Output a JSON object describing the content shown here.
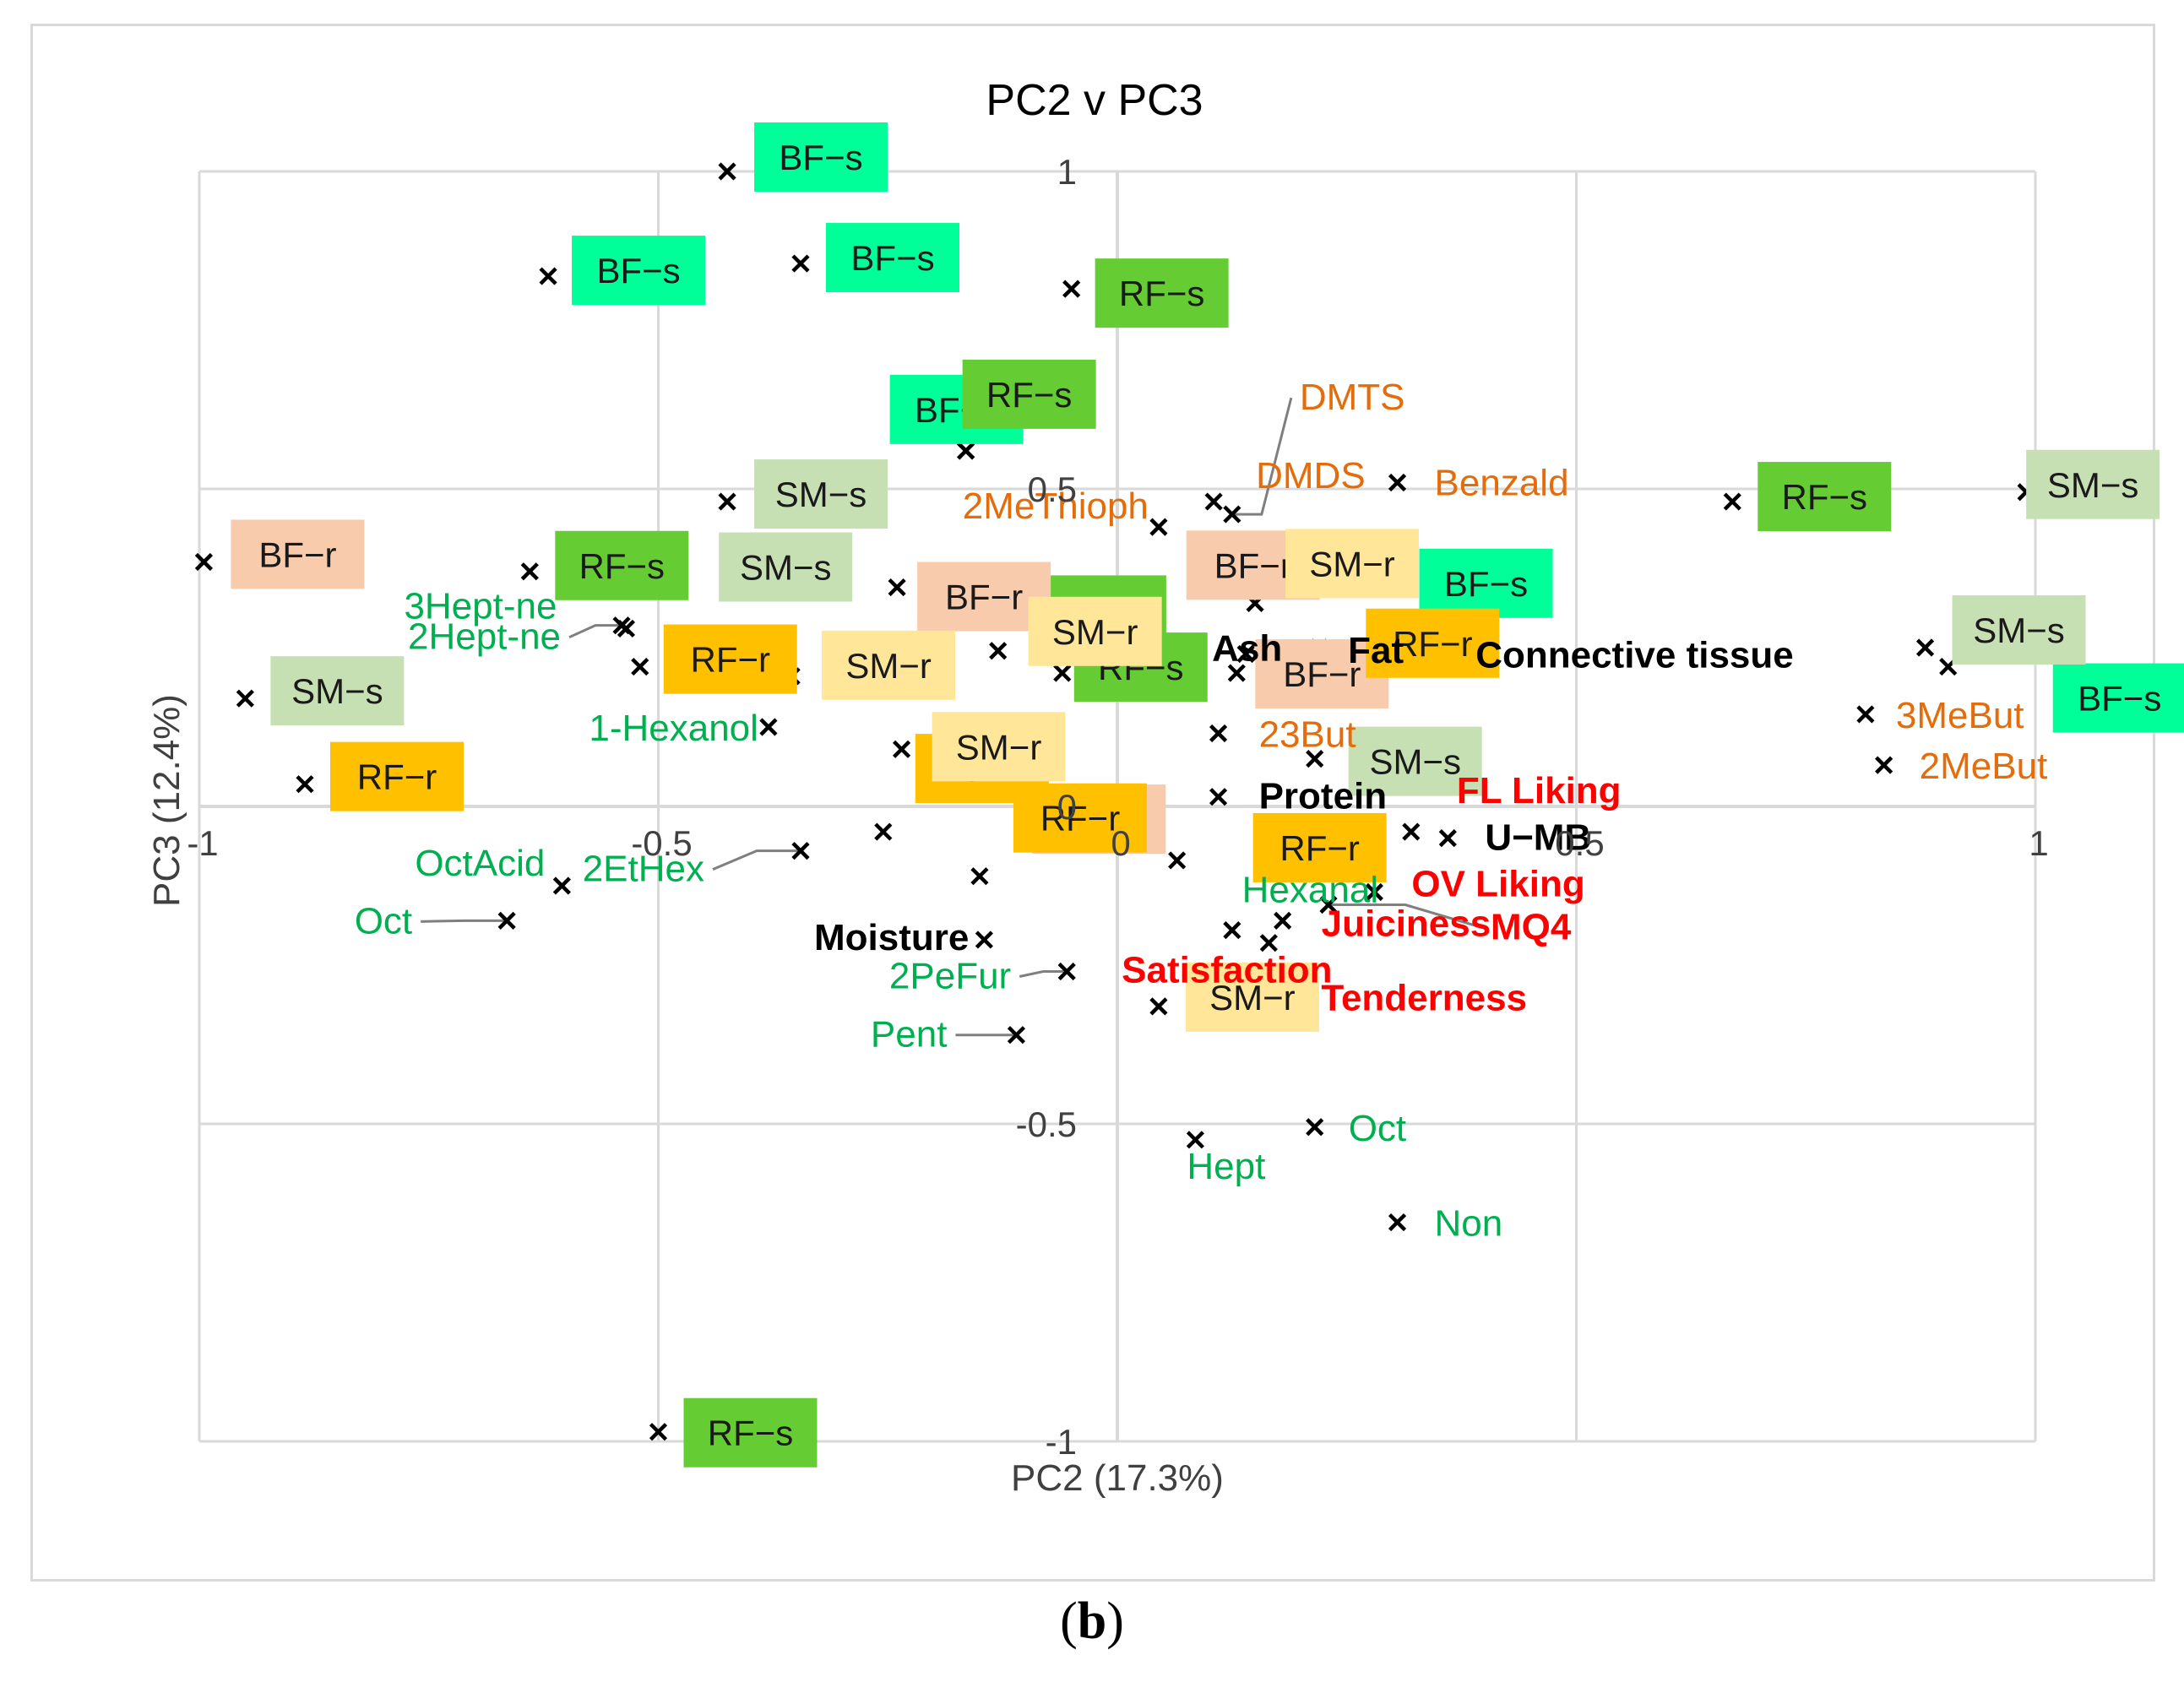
{
  "panel_label": {
    "open": "(",
    "letter": "b",
    "close": ")"
  },
  "chart_data": {
    "type": "scatter",
    "title": "PC2 v PC3",
    "xlabel": "PC2 (17.3%)",
    "ylabel": "PC3 (12.4%)",
    "xlim": [
      -1,
      1
    ],
    "ylim": [
      -1,
      1
    ],
    "xticks": [
      -1,
      -0.5,
      0,
      0.5,
      1
    ],
    "yticks": [
      -1,
      -0.5,
      0,
      0.5,
      1
    ],
    "x_tick_labels": [
      "-1",
      "-0.5",
      "0",
      "0.5",
      "1"
    ],
    "y_tick_labels": [
      "-1",
      "-0.5",
      "0",
      "0.5",
      "1"
    ],
    "grid": true,
    "colors": {
      "bf_s": "#00ff99",
      "rf_s": "#66cc33",
      "sm_s": "#c6e0b4",
      "bf_r": "#f8cbad",
      "rf_r": "#ffc000",
      "sm_r": "#ffe699",
      "volatile_orange": "#e46c0a",
      "volatile_green": "#00b050",
      "liking_red": "#ff0000",
      "composition_black": "#000000",
      "grid": "#d9d9d9",
      "marker": "#000000",
      "leader": "#7f7f7f"
    },
    "samples": [
      {
        "label": "BF−s",
        "group": "bf_s",
        "x": -0.425,
        "y": 1.0
      },
      {
        "label": "BF−s",
        "group": "bf_s",
        "x": -0.62,
        "y": 0.835
      },
      {
        "label": "BF−s",
        "group": "bf_s",
        "x": -0.345,
        "y": 0.855
      },
      {
        "label": "BF−s",
        "group": "bf_s",
        "x": -0.165,
        "y": 0.56
      },
      {
        "label": "BF−s",
        "group": "bf_s",
        "x": 0.305,
        "y": 0.35
      },
      {
        "label": "BF−s",
        "group": "bf_s",
        "x": 0.905,
        "y": 0.22
      },
      {
        "label": "RF−s",
        "group": "rf_s",
        "x": -0.05,
        "y": 0.815
      },
      {
        "label": "RF−s",
        "group": "rf_s",
        "x": -0.165,
        "y": 0.56
      },
      {
        "label": "RF−s",
        "group": "rf_s",
        "x": -0.64,
        "y": 0.37
      },
      {
        "label": "RF−s",
        "group": "rf_s",
        "x": -0.07,
        "y": 0.3
      },
      {
        "label": "RF−s",
        "group": "rf_s",
        "x": -0.06,
        "y": 0.21
      },
      {
        "label": "RF−s",
        "group": "rf_s",
        "x": 0.67,
        "y": 0.48
      },
      {
        "label": "RF−s",
        "group": "rf_s",
        "x": -0.5,
        "y": -0.985
      },
      {
        "label": "SM−s",
        "group": "sm_s",
        "x": -0.425,
        "y": 0.48
      },
      {
        "label": "SM−s",
        "group": "sm_s",
        "x": -0.48,
        "y": 0.365
      },
      {
        "label": "SM−s",
        "group": "sm_s",
        "x": -0.95,
        "y": 0.17
      },
      {
        "label": "SM−s",
        "group": "sm_s",
        "x": 0.99,
        "y": 0.495
      },
      {
        "label": "SM−s",
        "group": "sm_s",
        "x": 0.88,
        "y": 0.25
      },
      {
        "label": "SM−s",
        "group": "sm_s",
        "x": 0.215,
        "y": 0.075
      },
      {
        "label": "BF−r",
        "group": "bf_r",
        "x": -0.995,
        "y": 0.385
      },
      {
        "label": "BF−r",
        "group": "bf_r",
        "x": -0.24,
        "y": 0.345
      },
      {
        "label": "BF−r",
        "group": "bf_r",
        "x": 0.02,
        "y": 0.32
      },
      {
        "label": "BF−r",
        "group": "bf_r",
        "x": 0.13,
        "y": 0.21
      },
      {
        "label": "BF−r",
        "group": "bf_r",
        "x": -0.065,
        "y": -0.04
      },
      {
        "label": "RF−r",
        "group": "rf_r",
        "x": -0.52,
        "y": 0.22
      },
      {
        "label": "RF−r",
        "group": "rf_r",
        "x": -0.885,
        "y": 0.035
      },
      {
        "label": "RF−r",
        "group": "rf_r",
        "x": 0.245,
        "y": 0.245
      },
      {
        "label": "RF−r",
        "group": "rf_r",
        "x": -0.255,
        "y": -0.04
      },
      {
        "label": "RF−r",
        "group": "rf_r",
        "x": -0.15,
        "y": -0.11
      },
      {
        "label": "RF−r",
        "group": "rf_r",
        "x": 0.065,
        "y": -0.085
      },
      {
        "label": "SM−r",
        "group": "sm_r",
        "x": 0.15,
        "y": 0.32
      },
      {
        "label": "SM−r",
        "group": "sm_r",
        "x": -0.13,
        "y": 0.245
      },
      {
        "label": "SM−r",
        "group": "sm_r",
        "x": -0.355,
        "y": 0.205
      },
      {
        "label": "SM−r",
        "group": "sm_r",
        "x": -0.235,
        "y": 0.09
      },
      {
        "label": "SM−r",
        "group": "sm_r",
        "x": 0.045,
        "y": -0.315
      }
    ],
    "variables": [
      {
        "label": "DMTS",
        "group": "volatile_orange",
        "x": 0.125,
        "y": 0.46
      },
      {
        "label": "DMDS",
        "group": "volatile_orange",
        "x": 0.105,
        "y": 0.48
      },
      {
        "label": "Benzald",
        "group": "volatile_orange",
        "x": 0.305,
        "y": 0.51
      },
      {
        "label": "2MeThioph",
        "group": "volatile_orange",
        "x": 0.045,
        "y": 0.44
      },
      {
        "label": "23But",
        "group": "volatile_orange",
        "x": 0.11,
        "y": 0.115
      },
      {
        "label": "3MeBut",
        "group": "volatile_orange",
        "x": 0.815,
        "y": 0.145
      },
      {
        "label": "2MeBut",
        "group": "volatile_orange",
        "x": 0.835,
        "y": 0.065
      },
      {
        "label": "3Hept-ne",
        "group": "volatile_green",
        "x": -0.535,
        "y": 0.28
      },
      {
        "label": "2Hept-ne",
        "group": "volatile_green",
        "x": -0.54,
        "y": 0.285
      },
      {
        "label": "1-Hexanol",
        "group": "volatile_green",
        "x": -0.38,
        "y": 0.125
      },
      {
        "label": "2EtHex",
        "group": "volatile_green",
        "x": -0.345,
        "y": -0.07
      },
      {
        "label": "OctAcid",
        "group": "volatile_green",
        "x": -0.605,
        "y": -0.125
      },
      {
        "label": "Oct",
        "group": "volatile_green",
        "x": -0.665,
        "y": -0.18
      },
      {
        "label": "2PeFur",
        "group": "volatile_green",
        "x": -0.055,
        "y": -0.26
      },
      {
        "label": "Pent",
        "group": "volatile_green",
        "x": -0.11,
        "y": -0.36
      },
      {
        "label": "Hexanal",
        "group": "volatile_green",
        "x": 0.18,
        "y": -0.09
      },
      {
        "label": "Hept",
        "group": "volatile_green",
        "x": 0.085,
        "y": -0.525
      },
      {
        "label": "Oct",
        "group": "volatile_green",
        "x": 0.215,
        "y": -0.505
      },
      {
        "label": "Non",
        "group": "volatile_green",
        "x": 0.305,
        "y": -0.655
      },
      {
        "label": "FL Liking",
        "group": "liking_red",
        "x": 0.32,
        "y": -0.04
      },
      {
        "label": "OV Liking",
        "group": "liking_red",
        "x": 0.28,
        "y": -0.135
      },
      {
        "label": "Juiciness",
        "group": "liking_red",
        "x": 0.18,
        "y": -0.18
      },
      {
        "label": "MQ4",
        "group": "liking_red",
        "x": 0.23,
        "y": -0.155
      },
      {
        "label": "Satisfaction",
        "group": "liking_red",
        "x": 0.125,
        "y": -0.195
      },
      {
        "label": "Tenderness",
        "group": "liking_red",
        "x": 0.165,
        "y": -0.215
      },
      {
        "label": "Ash",
        "group": "composition_black",
        "x": 0.14,
        "y": 0.24
      },
      {
        "label": "Fat",
        "group": "composition_black",
        "x": 0.22,
        "y": 0.25
      },
      {
        "label": "Connective tissue",
        "group": "composition_black",
        "x": 0.37,
        "y": 0.24
      },
      {
        "label": "Protein",
        "group": "composition_black",
        "x": 0.11,
        "y": 0.015
      },
      {
        "label": "U−MB",
        "group": "composition_black",
        "x": 0.36,
        "y": -0.05
      },
      {
        "label": "Moisture",
        "group": "composition_black",
        "x": -0.145,
        "y": -0.21
      }
    ]
  }
}
